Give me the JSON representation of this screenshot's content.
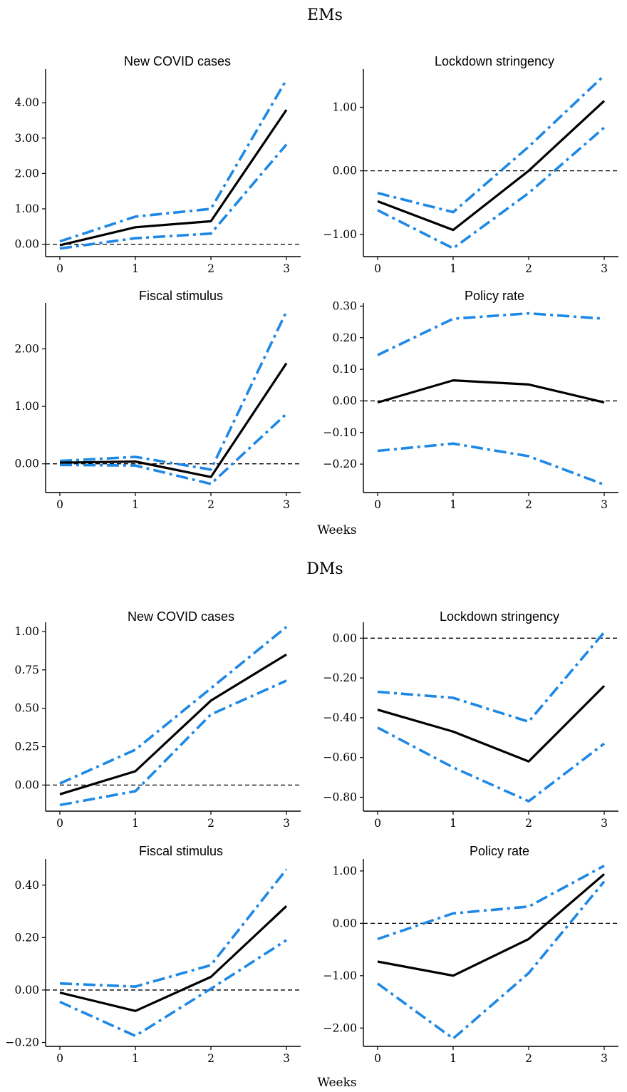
{
  "colors": {
    "band": "#1e88e5",
    "point": "#000000"
  },
  "sections": [
    {
      "title": "EMs",
      "xlabel": "Weeks"
    },
    {
      "title": "DMs",
      "xlabel": "Weeks"
    }
  ],
  "chart_data": [
    {
      "type": "line",
      "group": "EMs",
      "title": "New COVID cases",
      "x": [
        0,
        1,
        2,
        3
      ],
      "ylim": [
        -0.35,
        4.95
      ],
      "yticks": [
        0,
        1,
        2,
        3,
        4
      ],
      "ytick_labels": [
        "0.00",
        "1.00",
        "2.00",
        "3.00",
        "4.00"
      ],
      "xticks": [
        0,
        1,
        2,
        3
      ],
      "xtick_labels": [
        "0",
        "1",
        "2",
        "3"
      ],
      "series": [
        {
          "role": "upper",
          "values": [
            0.08,
            0.78,
            1.0,
            4.65
          ]
        },
        {
          "role": "point",
          "values": [
            -0.03,
            0.48,
            0.65,
            3.8
          ]
        },
        {
          "role": "lower",
          "values": [
            -0.12,
            0.17,
            0.3,
            2.82
          ]
        }
      ],
      "zero_line": true
    },
    {
      "type": "line",
      "group": "EMs",
      "title": "Lockdown stringency",
      "x": [
        0,
        1,
        2,
        3
      ],
      "ylim": [
        -1.35,
        1.6
      ],
      "yticks": [
        -1,
        0,
        1
      ],
      "ytick_labels": [
        "−1.00",
        "0.00",
        "1.00"
      ],
      "xticks": [
        0,
        1,
        2,
        3
      ],
      "xtick_labels": [
        "0",
        "1",
        "2",
        "3"
      ],
      "series": [
        {
          "role": "upper",
          "values": [
            -0.35,
            -0.65,
            0.38,
            1.5
          ]
        },
        {
          "role": "point",
          "values": [
            -0.48,
            -0.93,
            0.0,
            1.1
          ]
        },
        {
          "role": "lower",
          "values": [
            -0.62,
            -1.22,
            -0.35,
            0.68
          ]
        }
      ],
      "zero_line": true
    },
    {
      "type": "line",
      "group": "EMs",
      "title": "Fiscal stimulus",
      "x": [
        0,
        1,
        2,
        3
      ],
      "ylim": [
        -0.5,
        2.8
      ],
      "yticks": [
        0,
        1,
        2
      ],
      "ytick_labels": [
        "0.00",
        "1.00",
        "2.00"
      ],
      "xticks": [
        0,
        1,
        2,
        3
      ],
      "xtick_labels": [
        "0",
        "1",
        "2",
        "3"
      ],
      "series": [
        {
          "role": "upper",
          "values": [
            0.05,
            0.12,
            -0.1,
            2.65
          ]
        },
        {
          "role": "point",
          "values": [
            0.02,
            0.04,
            -0.23,
            1.75
          ]
        },
        {
          "role": "lower",
          "values": [
            -0.02,
            -0.03,
            -0.35,
            0.87
          ]
        }
      ],
      "zero_line": true
    },
    {
      "type": "line",
      "group": "EMs",
      "title": "Policy rate",
      "x": [
        0,
        1,
        2,
        3
      ],
      "ylim": [
        -0.29,
        0.31
      ],
      "yticks": [
        -0.2,
        -0.1,
        0,
        0.1,
        0.2,
        0.3
      ],
      "ytick_labels": [
        "−0.20",
        "−0.10",
        "0.00",
        "0.10",
        "0.20",
        "0.30"
      ],
      "xticks": [
        0,
        1,
        2,
        3
      ],
      "xtick_labels": [
        "0",
        "1",
        "2",
        "3"
      ],
      "series": [
        {
          "role": "upper",
          "values": [
            0.145,
            0.26,
            0.277,
            0.26
          ]
        },
        {
          "role": "point",
          "values": [
            -0.005,
            0.065,
            0.052,
            -0.005
          ]
        },
        {
          "role": "lower",
          "values": [
            -0.158,
            -0.135,
            -0.175,
            -0.265
          ]
        }
      ],
      "zero_line": true
    },
    {
      "type": "line",
      "group": "DMs",
      "title": "New COVID cases",
      "x": [
        0,
        1,
        2,
        3
      ],
      "ylim": [
        -0.17,
        1.06
      ],
      "yticks": [
        0,
        0.25,
        0.5,
        0.75,
        1
      ],
      "ytick_labels": [
        "0.00",
        "0.25",
        "0.50",
        "0.75",
        "1.00"
      ],
      "xticks": [
        0,
        1,
        2,
        3
      ],
      "xtick_labels": [
        "0",
        "1",
        "2",
        "3"
      ],
      "series": [
        {
          "role": "upper",
          "values": [
            0.01,
            0.23,
            0.63,
            1.03
          ]
        },
        {
          "role": "point",
          "values": [
            -0.06,
            0.09,
            0.55,
            0.85
          ]
        },
        {
          "role": "lower",
          "values": [
            -0.13,
            -0.04,
            0.46,
            0.68
          ]
        }
      ],
      "zero_line": true
    },
    {
      "type": "line",
      "group": "DMs",
      "title": "Lockdown stringency",
      "x": [
        0,
        1,
        2,
        3
      ],
      "ylim": [
        -0.87,
        0.08
      ],
      "yticks": [
        -0.8,
        -0.6,
        -0.4,
        -0.2,
        0
      ],
      "ytick_labels": [
        "−0.80",
        "−0.60",
        "−0.40",
        "−0.20",
        "0.00"
      ],
      "xticks": [
        0,
        1,
        2,
        3
      ],
      "xtick_labels": [
        "0",
        "1",
        "2",
        "3"
      ],
      "series": [
        {
          "role": "upper",
          "values": [
            -0.27,
            -0.3,
            -0.42,
            0.03
          ]
        },
        {
          "role": "point",
          "values": [
            -0.36,
            -0.47,
            -0.62,
            -0.24
          ]
        },
        {
          "role": "lower",
          "values": [
            -0.45,
            -0.65,
            -0.82,
            -0.53
          ]
        }
      ],
      "zero_line": true
    },
    {
      "type": "line",
      "group": "DMs",
      "title": "Fiscal stimulus",
      "x": [
        0,
        1,
        2,
        3
      ],
      "ylim": [
        -0.215,
        0.5
      ],
      "yticks": [
        -0.2,
        0,
        0.2,
        0.4
      ],
      "ytick_labels": [
        "−0.20",
        "0.00",
        "0.20",
        "0.40"
      ],
      "xticks": [
        0,
        1,
        2,
        3
      ],
      "xtick_labels": [
        "0",
        "1",
        "2",
        "3"
      ],
      "series": [
        {
          "role": "upper",
          "values": [
            0.025,
            0.013,
            0.095,
            0.46
          ]
        },
        {
          "role": "point",
          "values": [
            -0.01,
            -0.08,
            0.05,
            0.32
          ]
        },
        {
          "role": "lower",
          "values": [
            -0.045,
            -0.175,
            0.005,
            0.19
          ]
        }
      ],
      "zero_line": true
    },
    {
      "type": "line",
      "group": "DMs",
      "title": "Policy rate",
      "x": [
        0,
        1,
        2,
        3
      ],
      "ylim": [
        -2.35,
        1.23
      ],
      "yticks": [
        -2,
        -1,
        0,
        1
      ],
      "ytick_labels": [
        "−2.00",
        "−1.00",
        "0.00",
        "1.00"
      ],
      "xticks": [
        0,
        1,
        2,
        3
      ],
      "xtick_labels": [
        "0",
        "1",
        "2",
        "3"
      ],
      "series": [
        {
          "role": "upper",
          "values": [
            -0.3,
            0.19,
            0.32,
            1.1
          ]
        },
        {
          "role": "point",
          "values": [
            -0.73,
            -1.0,
            -0.3,
            0.94
          ]
        },
        {
          "role": "lower",
          "values": [
            -1.15,
            -2.2,
            -0.95,
            0.8
          ]
        }
      ],
      "zero_line": true
    }
  ]
}
